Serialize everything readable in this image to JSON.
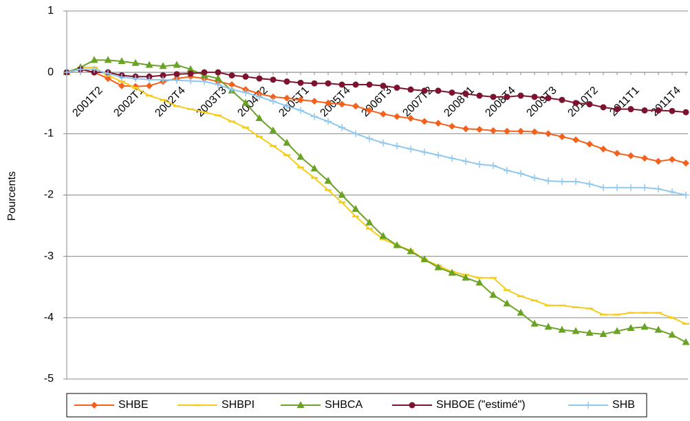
{
  "chart_data": {
    "type": "line",
    "y_label": "Pourcents",
    "categories": [
      "2001T2",
      null,
      null,
      "2002T1",
      null,
      null,
      "2002T4",
      null,
      null,
      "2003T3",
      null,
      null,
      "2004T2",
      null,
      null,
      "2005T1",
      null,
      null,
      "2005T4",
      null,
      null,
      "2006T3",
      null,
      null,
      "2007T2",
      null,
      null,
      "2008T1",
      null,
      null,
      "2008T4",
      null,
      null,
      "2009T3",
      null,
      null,
      "2010T2",
      null,
      null,
      "2011T1",
      null,
      null,
      "2011T4",
      null,
      null,
      null
    ],
    "ylim": [
      -5,
      1
    ],
    "yticks": [
      -5,
      -4,
      -3,
      -2,
      -1,
      0,
      1
    ],
    "grid": true,
    "series": [
      {
        "name": "SHBE",
        "color": "#f4611c",
        "marker": "diamond",
        "values": [
          0,
          0.05,
          0,
          -0.1,
          -0.22,
          -0.23,
          -0.22,
          -0.15,
          -0.1,
          -0.07,
          -0.1,
          -0.15,
          -0.2,
          -0.28,
          -0.35,
          -0.4,
          -0.42,
          -0.45,
          -0.47,
          -0.5,
          -0.52,
          -0.55,
          -0.62,
          -0.68,
          -0.72,
          -0.75,
          -0.8,
          -0.83,
          -0.88,
          -0.92,
          -0.93,
          -0.95,
          -0.96,
          -0.96,
          -0.97,
          -1.0,
          -1.05,
          -1.1,
          -1.17,
          -1.25,
          -1.32,
          -1.36,
          -1.4,
          -1.45,
          -1.42,
          -1.48
        ]
      },
      {
        "name": "SHBPI",
        "color": "#f5cc1a",
        "marker": "dash",
        "values": [
          0,
          0.08,
          0.08,
          -0.05,
          -0.15,
          -0.25,
          -0.38,
          -0.45,
          -0.55,
          -0.6,
          -0.65,
          -0.7,
          -0.8,
          -0.9,
          -1.05,
          -1.2,
          -1.35,
          -1.55,
          -1.72,
          -1.92,
          -2.12,
          -2.35,
          -2.55,
          -2.72,
          -2.82,
          -2.9,
          -3.05,
          -3.15,
          -3.25,
          -3.3,
          -3.35,
          -3.35,
          -3.55,
          -3.65,
          -3.72,
          -3.8,
          -3.8,
          -3.83,
          -3.85,
          -3.95,
          -3.95,
          -3.92,
          -3.92,
          -3.92,
          -4.0,
          -4.1
        ]
      },
      {
        "name": "SHBCA",
        "color": "#6aa226",
        "marker": "triangle",
        "values": [
          0,
          0.08,
          0.2,
          0.2,
          0.18,
          0.15,
          0.12,
          0.1,
          0.12,
          0.05,
          -0.05,
          -0.1,
          -0.3,
          -0.5,
          -0.75,
          -0.95,
          -1.15,
          -1.38,
          -1.57,
          -1.77,
          -2.0,
          -2.23,
          -2.45,
          -2.67,
          -2.82,
          -2.92,
          -3.05,
          -3.18,
          -3.27,
          -3.35,
          -3.43,
          -3.63,
          -3.77,
          -3.92,
          -4.1,
          -4.15,
          -4.2,
          -4.22,
          -4.25,
          -4.27,
          -4.22,
          -4.17,
          -4.15,
          -4.2,
          -4.28,
          -4.4
        ]
      },
      {
        "name": "SHBOE (\"estimé\")",
        "color": "#7c1430",
        "marker": "circle",
        "values": [
          0,
          0.05,
          0,
          0,
          -0.05,
          -0.07,
          -0.07,
          -0.05,
          -0.03,
          -0.02,
          0,
          0,
          -0.05,
          -0.07,
          -0.1,
          -0.12,
          -0.15,
          -0.17,
          -0.18,
          -0.18,
          -0.2,
          -0.2,
          -0.2,
          -0.22,
          -0.25,
          -0.28,
          -0.3,
          -0.3,
          -0.33,
          -0.35,
          -0.38,
          -0.4,
          -0.4,
          -0.38,
          -0.4,
          -0.42,
          -0.45,
          -0.5,
          -0.52,
          -0.57,
          -0.6,
          -0.6,
          -0.62,
          -0.62,
          -0.63,
          -0.65
        ]
      },
      {
        "name": "SHB",
        "color": "#8ec8f0",
        "marker": "plus",
        "values": [
          0,
          0.05,
          0.05,
          -0.02,
          -0.08,
          -0.1,
          -0.12,
          -0.12,
          -0.13,
          -0.14,
          -0.15,
          -0.2,
          -0.28,
          -0.33,
          -0.4,
          -0.47,
          -0.55,
          -0.62,
          -0.72,
          -0.8,
          -0.9,
          -1.0,
          -1.08,
          -1.15,
          -1.2,
          -1.25,
          -1.3,
          -1.35,
          -1.4,
          -1.45,
          -1.5,
          -1.52,
          -1.6,
          -1.65,
          -1.72,
          -1.77,
          -1.78,
          -1.78,
          -1.82,
          -1.88,
          -1.88,
          -1.88,
          -1.88,
          -1.9,
          -1.95,
          -2.0
        ]
      }
    ]
  }
}
